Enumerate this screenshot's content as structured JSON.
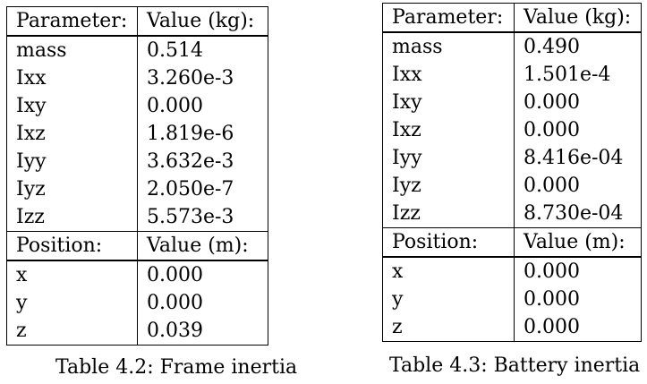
{
  "tables": [
    {
      "mass_header": [
        "Parameter:",
        "Value (kg):"
      ],
      "mass_rows": [
        [
          "mass",
          "0.514"
        ],
        [
          "Ixx",
          "3.260e-3"
        ],
        [
          "Ixy",
          "0.000"
        ],
        [
          "Ixz",
          "1.819e-6"
        ],
        [
          "Iyy",
          "3.632e-3"
        ],
        [
          "Iyz",
          "2.050e-7"
        ],
        [
          "Izz",
          "5.573e-3"
        ]
      ],
      "position_header": [
        "Position:",
        "Value (m):"
      ],
      "position_rows": [
        [
          "x",
          "0.000"
        ],
        [
          "y",
          "0.000"
        ],
        [
          "z",
          "0.039"
        ]
      ],
      "caption": "Table 4.2: Frame inertia"
    },
    {
      "mass_header": [
        "Parameter:",
        "Value (kg):"
      ],
      "mass_rows": [
        [
          "mass",
          "0.490"
        ],
        [
          "Ixx",
          "1.501e-4"
        ],
        [
          "Ixy",
          "0.000"
        ],
        [
          "Ixz",
          "0.000"
        ],
        [
          "Iyy",
          "8.416e-04"
        ],
        [
          "Iyz",
          "0.000"
        ],
        [
          "Izz",
          "8.730e-04"
        ]
      ],
      "position_header": [
        "Position:",
        "Value (m):"
      ],
      "position_rows": [
        [
          "x",
          "0.000"
        ],
        [
          "y",
          "0.000"
        ],
        [
          "z",
          "0.000"
        ]
      ],
      "caption": "Table 4.3: Battery inertia"
    }
  ]
}
